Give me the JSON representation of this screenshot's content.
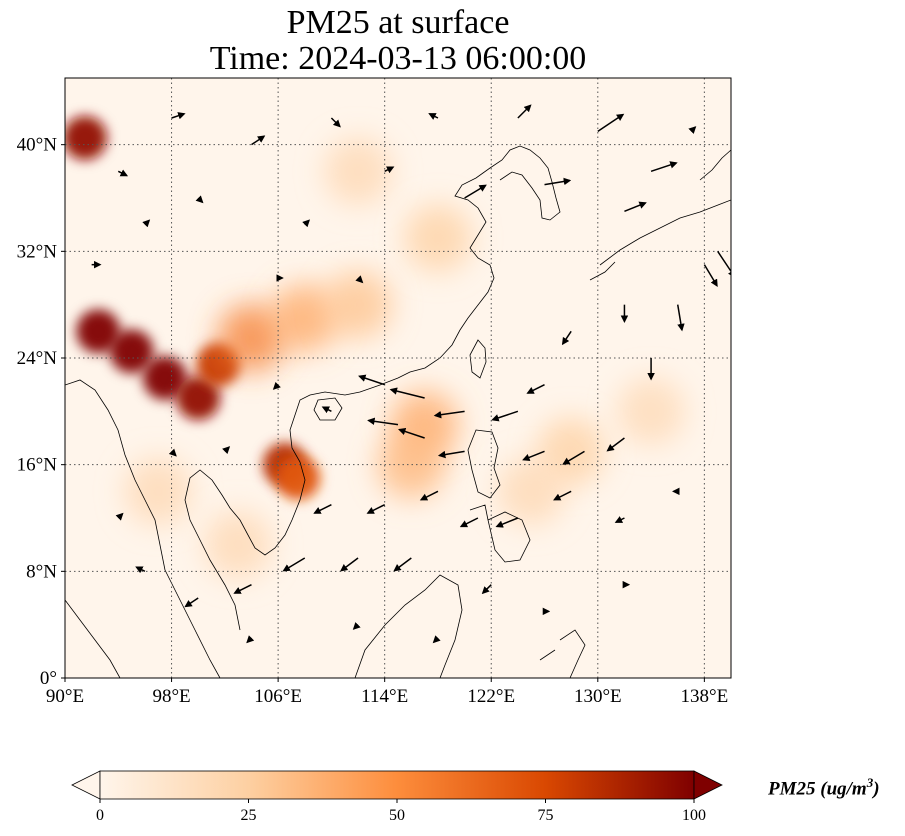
{
  "title": {
    "line1": "PM25 at surface",
    "line2": "Time: 2024-03-13 06:00:00"
  },
  "map": {
    "lon_range": [
      90,
      140
    ],
    "lat_range": [
      0,
      45
    ],
    "x_ticks": [
      {
        "value": 90,
        "label": "90°E"
      },
      {
        "value": 98,
        "label": "98°E"
      },
      {
        "value": 106,
        "label": "106°E"
      },
      {
        "value": 114,
        "label": "114°E"
      },
      {
        "value": 122,
        "label": "122°E"
      },
      {
        "value": 130,
        "label": "130°E"
      },
      {
        "value": 138,
        "label": "138°E"
      }
    ],
    "y_ticks": [
      {
        "value": 0,
        "label": "0°"
      },
      {
        "value": 8,
        "label": "8°N"
      },
      {
        "value": 16,
        "label": "16°N"
      },
      {
        "value": 24,
        "label": "24°N"
      },
      {
        "value": 32,
        "label": "32°N"
      },
      {
        "value": 40,
        "label": "40°N"
      }
    ],
    "gridlines": true,
    "pm25_hotspots": [
      {
        "lon": 95.0,
        "lat": 24.5,
        "value": 100
      },
      {
        "lon": 97.5,
        "lat": 22.5,
        "value": 100
      },
      {
        "lon": 100.0,
        "lat": 21.0,
        "value": 95
      },
      {
        "lon": 92.5,
        "lat": 26.0,
        "value": 100
      },
      {
        "lon": 101.5,
        "lat": 23.5,
        "value": 80
      },
      {
        "lon": 106.5,
        "lat": 16.0,
        "value": 85
      },
      {
        "lon": 107.5,
        "lat": 15.0,
        "value": 70
      },
      {
        "lon": 91.5,
        "lat": 40.5,
        "value": 95
      },
      {
        "lon": 104.0,
        "lat": 25.5,
        "value": 55
      },
      {
        "lon": 108.0,
        "lat": 27.0,
        "value": 40
      },
      {
        "lon": 117.0,
        "lat": 19.0,
        "value": 40
      },
      {
        "lon": 116.0,
        "lat": 16.0,
        "value": 35
      },
      {
        "lon": 112.0,
        "lat": 28.0,
        "value": 30
      },
      {
        "lon": 118.0,
        "lat": 33.0,
        "value": 25
      },
      {
        "lon": 128.0,
        "lat": 17.0,
        "value": 25
      },
      {
        "lon": 125.0,
        "lat": 14.0,
        "value": 20
      },
      {
        "lon": 112.0,
        "lat": 38.0,
        "value": 20
      },
      {
        "lon": 134.0,
        "lat": 20.0,
        "value": 18
      },
      {
        "lon": 103.0,
        "lat": 10.0,
        "value": 20
      },
      {
        "lon": 97.0,
        "lat": 14.0,
        "value": 20
      }
    ],
    "wind_vectors": [
      {
        "lon": 94,
        "lat": 38,
        "u": 2,
        "v": -1
      },
      {
        "lon": 98,
        "lat": 42,
        "u": 3,
        "v": 1
      },
      {
        "lon": 104,
        "lat": 40,
        "u": 3,
        "v": 2
      },
      {
        "lon": 110,
        "lat": 42,
        "u": 2,
        "v": -2
      },
      {
        "lon": 118,
        "lat": 42,
        "u": -2,
        "v": 1
      },
      {
        "lon": 124,
        "lat": 42,
        "u": 3,
        "v": 3
      },
      {
        "lon": 130,
        "lat": 41,
        "u": 6,
        "v": 4
      },
      {
        "lon": 134,
        "lat": 38,
        "u": 6,
        "v": 2
      },
      {
        "lon": 120,
        "lat": 36,
        "u": 5,
        "v": 3
      },
      {
        "lon": 126,
        "lat": 37,
        "u": 6,
        "v": 1
      },
      {
        "lon": 132,
        "lat": 35,
        "u": 5,
        "v": 2
      },
      {
        "lon": 138,
        "lat": 31,
        "u": 3,
        "v": -5
      },
      {
        "lon": 139,
        "lat": 32,
        "u": 4,
        "v": -6
      },
      {
        "lon": 136,
        "lat": 28,
        "u": 1,
        "v": -6
      },
      {
        "lon": 134,
        "lat": 24,
        "u": 0,
        "v": -5
      },
      {
        "lon": 132,
        "lat": 28,
        "u": 0,
        "v": -4
      },
      {
        "lon": 128,
        "lat": 26,
        "u": -2,
        "v": -3
      },
      {
        "lon": 126,
        "lat": 22,
        "u": -4,
        "v": -2
      },
      {
        "lon": 124,
        "lat": 20,
        "u": -6,
        "v": -2
      },
      {
        "lon": 120,
        "lat": 20,
        "u": -7,
        "v": -1
      },
      {
        "lon": 117,
        "lat": 21,
        "u": -8,
        "v": 2
      },
      {
        "lon": 115,
        "lat": 19,
        "u": -7,
        "v": 1
      },
      {
        "lon": 117,
        "lat": 18,
        "u": -6,
        "v": 2
      },
      {
        "lon": 114,
        "lat": 22,
        "u": -6,
        "v": 2
      },
      {
        "lon": 120,
        "lat": 17,
        "u": -6,
        "v": -1
      },
      {
        "lon": 126,
        "lat": 17,
        "u": -5,
        "v": -2
      },
      {
        "lon": 129,
        "lat": 17,
        "u": -5,
        "v": -3
      },
      {
        "lon": 132,
        "lat": 18,
        "u": -4,
        "v": -3
      },
      {
        "lon": 128,
        "lat": 14,
        "u": -4,
        "v": -2
      },
      {
        "lon": 124,
        "lat": 12,
        "u": -5,
        "v": -2
      },
      {
        "lon": 121,
        "lat": 12,
        "u": -4,
        "v": -2
      },
      {
        "lon": 118,
        "lat": 14,
        "u": -4,
        "v": -2
      },
      {
        "lon": 114,
        "lat": 13,
        "u": -4,
        "v": -2
      },
      {
        "lon": 110,
        "lat": 13,
        "u": -4,
        "v": -2
      },
      {
        "lon": 108,
        "lat": 9,
        "u": -5,
        "v": -3
      },
      {
        "lon": 112,
        "lat": 9,
        "u": -4,
        "v": -3
      },
      {
        "lon": 116,
        "lat": 9,
        "u": -4,
        "v": -3
      },
      {
        "lon": 104,
        "lat": 7,
        "u": -4,
        "v": -2
      },
      {
        "lon": 100,
        "lat": 6,
        "u": -3,
        "v": -2
      },
      {
        "lon": 96,
        "lat": 8,
        "u": -2,
        "v": 1
      },
      {
        "lon": 94,
        "lat": 12,
        "u": 1,
        "v": 1
      },
      {
        "lon": 92,
        "lat": 31,
        "u": 2,
        "v": 0
      },
      {
        "lon": 96,
        "lat": 34,
        "u": 1,
        "v": 1
      },
      {
        "lon": 100,
        "lat": 36,
        "u": 1,
        "v": -1
      },
      {
        "lon": 108,
        "lat": 34,
        "u": 1,
        "v": 1
      },
      {
        "lon": 112,
        "lat": 30,
        "u": 1,
        "v": -1
      },
      {
        "lon": 106,
        "lat": 22,
        "u": -1,
        "v": -1
      },
      {
        "lon": 102,
        "lat": 17,
        "u": 1,
        "v": 1
      },
      {
        "lon": 98,
        "lat": 17,
        "u": 1,
        "v": -1
      },
      {
        "lon": 110,
        "lat": 20,
        "u": -2,
        "v": 1
      },
      {
        "lon": 122,
        "lat": 7,
        "u": -2,
        "v": -2
      },
      {
        "lon": 126,
        "lat": 5,
        "u": 1,
        "v": 0
      },
      {
        "lon": 132,
        "lat": 7,
        "u": 1,
        "v": 0
      },
      {
        "lon": 136,
        "lat": 14,
        "u": -1,
        "v": 0
      },
      {
        "lon": 112,
        "lat": 4,
        "u": -1,
        "v": -1
      },
      {
        "lon": 104,
        "lat": 3,
        "u": -1,
        "v": -1
      },
      {
        "lon": 118,
        "lat": 3,
        "u": -1,
        "v": -1
      },
      {
        "lon": 132,
        "lat": 12,
        "u": -2,
        "v": -1
      },
      {
        "lon": 137,
        "lat": 41,
        "u": 1,
        "v": 1
      },
      {
        "lon": 114,
        "lat": 38,
        "u": 2,
        "v": 1
      },
      {
        "lon": 106,
        "lat": 30,
        "u": 1,
        "v": 0
      }
    ],
    "colors": {
      "pm_low": "#fff5eb",
      "pm_25": "#fdd0a2",
      "pm_50": "#fd8d3c",
      "pm_75": "#d94801",
      "pm_high": "#7f0000",
      "wind": "#000000",
      "coastline": "#000000",
      "grid": "#555555"
    }
  },
  "colorbar": {
    "ticks": [
      {
        "value": 0,
        "label": "0"
      },
      {
        "value": 25,
        "label": "25"
      },
      {
        "value": 50,
        "label": "50"
      },
      {
        "value": 75,
        "label": "75"
      },
      {
        "value": 100,
        "label": "100"
      }
    ],
    "range": [
      0,
      100
    ],
    "extend": "both",
    "title": "PM25 (ug/m",
    "title_sup": "3",
    "title_close": ")"
  }
}
